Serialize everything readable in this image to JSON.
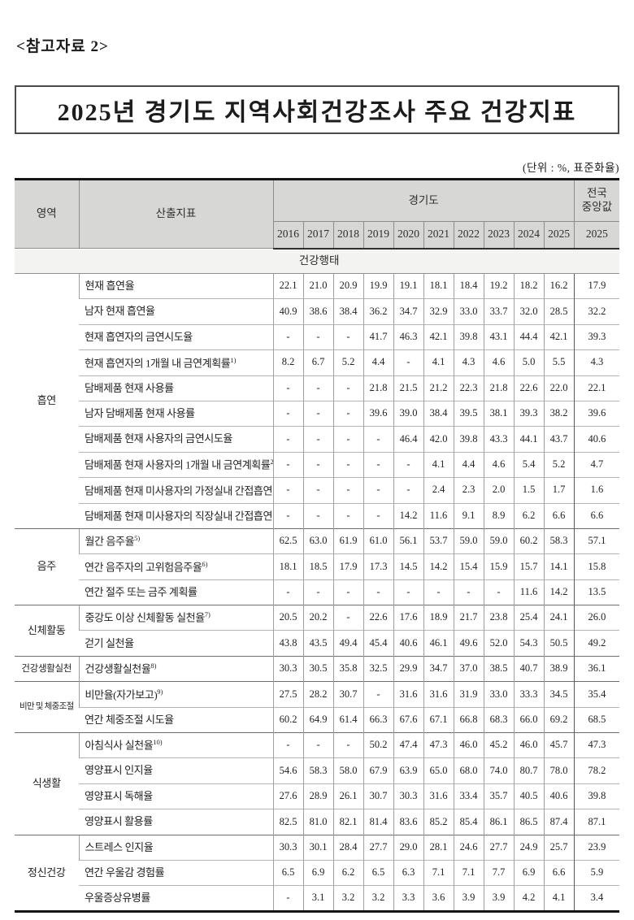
{
  "page": {
    "ref_label": "<참고자료 2>",
    "title": "2025년 경기도 지역사회건강조사 주요 건강지표",
    "unit_note": "(단위 : %, 표준화율)"
  },
  "table": {
    "header": {
      "area": "영역",
      "indicator": "산출지표",
      "region_group": "경기도",
      "national_label_line1": "전국",
      "national_label_line2": "중앙값",
      "years": [
        "2016",
        "2017",
        "2018",
        "2019",
        "2020",
        "2021",
        "2022",
        "2023",
        "2024",
        "2025"
      ],
      "national_year": "2025"
    },
    "behavior_section": "건강행태",
    "sections": [
      {
        "area": "흡연",
        "rows": [
          {
            "label": "현재 흡연율",
            "sup": "",
            "values": [
              "22.1",
              "21.0",
              "20.9",
              "19.9",
              "19.1",
              "18.1",
              "18.4",
              "19.2",
              "18.2",
              "16.2"
            ],
            "national": "17.9"
          },
          {
            "label": "남자 현재 흡연율",
            "sup": "",
            "values": [
              "40.9",
              "38.6",
              "38.4",
              "36.2",
              "34.7",
              "32.9",
              "33.0",
              "33.7",
              "32.0",
              "28.5"
            ],
            "national": "32.2"
          },
          {
            "label": "현재 흡연자의 금연시도율",
            "sup": "",
            "values": [
              "-",
              "-",
              "-",
              "41.7",
              "46.3",
              "42.1",
              "39.8",
              "43.1",
              "44.4",
              "42.1"
            ],
            "national": "39.3"
          },
          {
            "label": "현재 흡연자의 1개월 내 금연계획률",
            "sup": "1)",
            "values": [
              "8.2",
              "6.7",
              "5.2",
              "4.4",
              "-",
              "4.1",
              "4.3",
              "4.6",
              "5.0",
              "5.5"
            ],
            "national": "4.3"
          },
          {
            "label": "담배제품 현재 사용률",
            "sup": "",
            "values": [
              "-",
              "-",
              "-",
              "21.8",
              "21.5",
              "21.2",
              "22.3",
              "21.8",
              "22.6",
              "22.0"
            ],
            "national": "22.1"
          },
          {
            "label": "남자 담배제품 현재 사용률",
            "sup": "",
            "values": [
              "-",
              "-",
              "-",
              "39.6",
              "39.0",
              "38.4",
              "39.5",
              "38.1",
              "39.3",
              "38.2"
            ],
            "national": "39.6"
          },
          {
            "label": "담배제품 현재 사용자의 금연시도율",
            "sup": "",
            "values": [
              "-",
              "-",
              "-",
              "-",
              "46.4",
              "42.0",
              "39.8",
              "43.3",
              "44.1",
              "43.7"
            ],
            "national": "40.6"
          },
          {
            "label": "담배제품 현재 사용자의 1개월 내 금연계획률",
            "sup": "2)",
            "values": [
              "-",
              "-",
              "-",
              "-",
              "-",
              "4.1",
              "4.4",
              "4.6",
              "5.4",
              "5.2"
            ],
            "national": "4.7"
          },
          {
            "label": "담배제품 현재 미사용자의 가정실내 간접흡연 노출률",
            "sup": "3)",
            "values": [
              "-",
              "-",
              "-",
              "-",
              "-",
              "2.4",
              "2.3",
              "2.0",
              "1.5",
              "1.7"
            ],
            "national": "1.6"
          },
          {
            "label": "담배제품 현재 미사용자의 직장실내 간접흡연 노출률",
            "sup": "4)",
            "values": [
              "-",
              "-",
              "-",
              "-",
              "14.2",
              "11.6",
              "9.1",
              "8.9",
              "6.2",
              "6.6"
            ],
            "national": "6.6"
          }
        ]
      },
      {
        "area": "음주",
        "rows": [
          {
            "label": "월간 음주율",
            "sup": "5)",
            "values": [
              "62.5",
              "63.0",
              "61.9",
              "61.0",
              "56.1",
              "53.7",
              "59.0",
              "59.0",
              "60.2",
              "58.3"
            ],
            "national": "57.1"
          },
          {
            "label": "연간 음주자의 고위험음주율",
            "sup": "6)",
            "values": [
              "18.1",
              "18.5",
              "17.9",
              "17.3",
              "14.5",
              "14.2",
              "15.4",
              "15.9",
              "15.7",
              "14.1"
            ],
            "national": "15.8"
          },
          {
            "label": "연간 절주 또는 금주 계획률",
            "sup": "",
            "values": [
              "-",
              "-",
              "-",
              "-",
              "-",
              "-",
              "-",
              "-",
              "11.6",
              "14.2"
            ],
            "national": "13.5"
          }
        ]
      },
      {
        "area": "신체활동",
        "rows": [
          {
            "label": "중강도 이상 신체활동 실천율",
            "sup": "7)",
            "values": [
              "20.5",
              "20.2",
              "-",
              "22.6",
              "17.6",
              "18.9",
              "21.7",
              "23.8",
              "25.4",
              "24.1"
            ],
            "national": "26.0"
          },
          {
            "label": "걷기 실천율",
            "sup": "",
            "values": [
              "43.8",
              "43.5",
              "49.4",
              "45.4",
              "40.6",
              "46.1",
              "49.6",
              "52.0",
              "54.3",
              "50.5"
            ],
            "national": "49.2"
          }
        ]
      },
      {
        "area": "건강생활실천",
        "rows": [
          {
            "label": "건강생활실천율",
            "sup": "8)",
            "values": [
              "30.3",
              "30.5",
              "35.8",
              "32.5",
              "29.9",
              "34.7",
              "37.0",
              "38.5",
              "40.7",
              "38.9"
            ],
            "national": "36.1"
          }
        ]
      },
      {
        "area": "비만 및 체중조절",
        "rows": [
          {
            "label": "비만율(자가보고)",
            "sup": "9)",
            "values": [
              "27.5",
              "28.2",
              "30.7",
              "-",
              "31.6",
              "31.6",
              "31.9",
              "33.0",
              "33.3",
              "34.5"
            ],
            "national": "35.4"
          },
          {
            "label": "연간 체중조절 시도율",
            "sup": "",
            "values": [
              "60.2",
              "64.9",
              "61.4",
              "66.3",
              "67.6",
              "67.1",
              "66.8",
              "68.3",
              "66.0",
              "69.2"
            ],
            "national": "68.5"
          }
        ]
      },
      {
        "area": "식생활",
        "rows": [
          {
            "label": "아침식사 실천율",
            "sup": "10)",
            "values": [
              "-",
              "-",
              "-",
              "50.2",
              "47.4",
              "47.3",
              "46.0",
              "45.2",
              "46.0",
              "45.7"
            ],
            "national": "47.3"
          },
          {
            "label": "영양표시 인지율",
            "sup": "",
            "values": [
              "54.6",
              "58.3",
              "58.0",
              "67.9",
              "63.9",
              "65.0",
              "68.0",
              "74.0",
              "80.7",
              "78.0"
            ],
            "national": "78.2"
          },
          {
            "label": "영양표시 독해율",
            "sup": "",
            "values": [
              "27.6",
              "28.9",
              "26.1",
              "30.7",
              "30.3",
              "31.6",
              "33.4",
              "35.7",
              "40.5",
              "40.6"
            ],
            "national": "39.8"
          },
          {
            "label": "영양표시 활용률",
            "sup": "",
            "values": [
              "82.5",
              "81.0",
              "82.1",
              "81.4",
              "83.6",
              "85.2",
              "85.4",
              "86.1",
              "86.5",
              "87.4"
            ],
            "national": "87.1"
          }
        ]
      },
      {
        "area": "정신건강",
        "rows": [
          {
            "label": "스트레스 인지율",
            "sup": "",
            "values": [
              "30.3",
              "30.1",
              "28.4",
              "27.7",
              "29.0",
              "28.1",
              "24.6",
              "27.7",
              "24.9",
              "25.7"
            ],
            "national": "23.9"
          },
          {
            "label": "연간 우울감 경험률",
            "sup": "",
            "values": [
              "6.5",
              "6.9",
              "6.2",
              "6.5",
              "6.3",
              "7.1",
              "7.1",
              "7.7",
              "6.9",
              "6.6"
            ],
            "national": "5.9"
          },
          {
            "label": "우울증상유병률",
            "sup": "",
            "values": [
              "-",
              "3.1",
              "3.2",
              "3.2",
              "3.3",
              "3.6",
              "3.9",
              "3.9",
              "4.2",
              "4.1"
            ],
            "national": "3.4"
          }
        ]
      }
    ]
  }
}
